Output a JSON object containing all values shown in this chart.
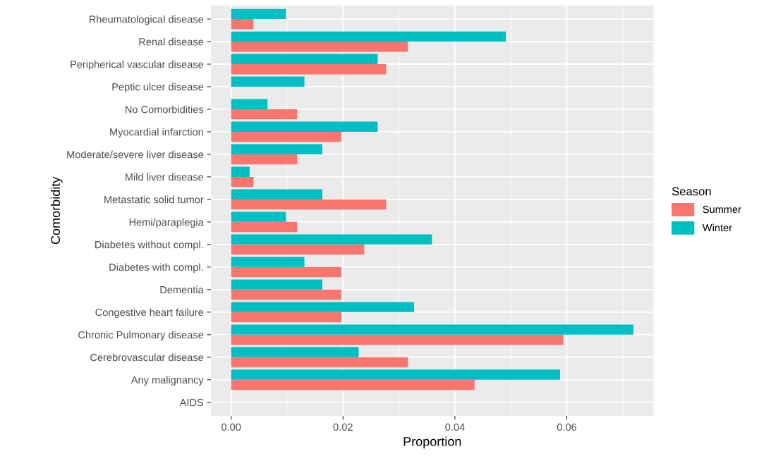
{
  "chart_data": {
    "type": "bar",
    "orientation": "horizontal",
    "xlabel": "Proportion",
    "ylabel": "Comorbidity",
    "legend_title": "Season",
    "legend": "right",
    "grid": true,
    "categories": [
      "Rheumatological disease",
      "Renal disease",
      "Peripherical vascular disease",
      "Peptic ulcer disease",
      "No Comorbidities",
      "Myocardial infarction",
      "Moderate/severe liver disease",
      "Mild liver disease",
      "Metastatic solid tumor",
      "Hemi/paraplegia",
      "Diabetes without compl.",
      "Diabetes with compl.",
      "Dementia",
      "Congestive heart failure",
      "Chronic Pulmonary disease",
      "Cerebrovascular disease",
      "Any malignancy",
      "AIDS"
    ],
    "series": [
      {
        "name": "Summer",
        "color": "#f8766d",
        "values": [
          0.004,
          0.0316,
          0.0277,
          0,
          0.0118,
          0.0197,
          0.0118,
          0.004,
          0.0277,
          0.0118,
          0.0238,
          0.0197,
          0.0197,
          0.0197,
          0.0594,
          0.0316,
          0.0435,
          0
        ]
      },
      {
        "name": "Winter",
        "color": "#00bfc4",
        "values": [
          0.0098,
          0.0491,
          0.0262,
          0.0131,
          0.0065,
          0.0262,
          0.0163,
          0.0033,
          0.0163,
          0.0098,
          0.0359,
          0.0131,
          0.0163,
          0.0327,
          0.0719,
          0.0228,
          0.0588,
          0
        ]
      }
    ],
    "xlim": [
      -0.0036,
      0.0755
    ],
    "xticks": [
      {
        "value": 0,
        "label": "0.00"
      },
      {
        "value": 0.02,
        "label": "0.02"
      },
      {
        "value": 0.04,
        "label": "0.04"
      },
      {
        "value": 0.06,
        "label": "0.06"
      }
    ]
  }
}
